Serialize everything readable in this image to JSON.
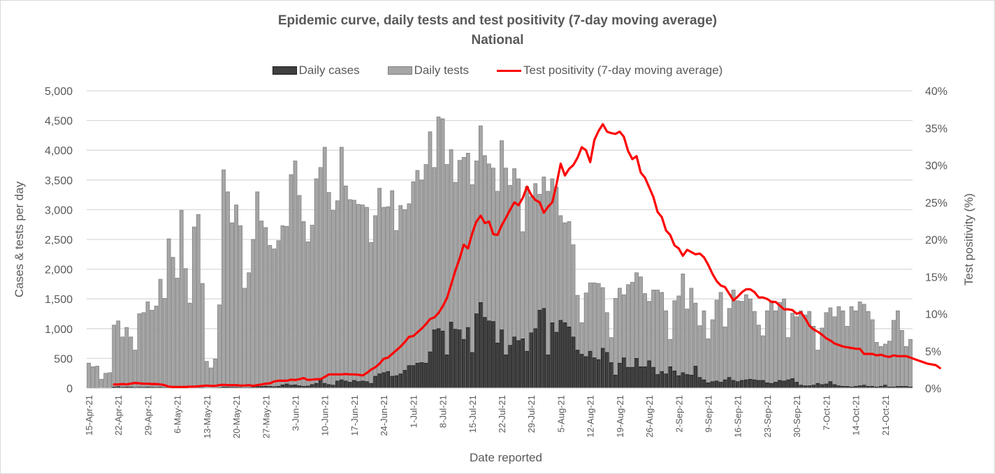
{
  "chart_data": {
    "type": "bar",
    "title": "Epidemic curve, daily tests and test positivity (7-day moving average)",
    "subtitle": "National",
    "xlabel": "Date reported",
    "ylabel": "Cases & tests per day",
    "y2label": "Test positivity (%)",
    "ylim": [
      0,
      5000
    ],
    "y2lim": [
      0,
      40
    ],
    "yticks": [
      "0",
      "500",
      "1,000",
      "1,500",
      "2,000",
      "2,500",
      "3,000",
      "3,500",
      "4,000",
      "4,500",
      "5,000"
    ],
    "y2ticks": [
      "0%",
      "5%",
      "10%",
      "15%",
      "20%",
      "25%",
      "30%",
      "35%",
      "40%"
    ],
    "grid": true,
    "legend_position": "top",
    "legend": [
      "Daily cases",
      "Daily tests",
      "Test positivity (7-day moving average)"
    ],
    "colors": {
      "cases": "#404040",
      "tests": "#a6a6a6",
      "positivity": "#ff0000",
      "bar_border": "#7f7f7f"
    },
    "start_date": "15-Apr-21",
    "xtick_labels": [
      "15-Apr-21",
      "22-Apr-21",
      "29-Apr-21",
      "6-May-21",
      "13-May-21",
      "20-May-21",
      "27-May-21",
      "3-Jun-21",
      "10-Jun-21",
      "17-Jun-21",
      "24-Jun-21",
      "1-Jul-21",
      "8-Jul-21",
      "15-Jul-21",
      "22-Jul-21",
      "29-Jul-21",
      "5-Aug-21",
      "12-Aug-21",
      "19-Aug-21",
      "26-Aug-21",
      "2-Sep-21",
      "9-Sep-21",
      "16-Sep-21",
      "23-Sep-21",
      "30-Sep-21",
      "7-Oct-21",
      "14-Oct-21",
      "21-Oct-21"
    ],
    "xtick_interval_days": 7,
    "series": [
      {
        "name": "Daily tests",
        "type": "bar",
        "axis": "left",
        "values": [
          420,
          360,
          370,
          150,
          250,
          260,
          1060,
          1130,
          860,
          1020,
          860,
          640,
          1250,
          1270,
          1450,
          1310,
          1380,
          1830,
          1510,
          2510,
          2200,
          1850,
          2990,
          2010,
          1430,
          2710,
          2920,
          1760,
          450,
          340,
          490,
          1400,
          3670,
          3300,
          2780,
          3080,
          2730,
          1680,
          1940,
          2500,
          3300,
          2810,
          2700,
          2400,
          2340,
          2480,
          2730,
          2720,
          3590,
          3820,
          3240,
          2800,
          2460,
          2740,
          3520,
          3710,
          4050,
          3290,
          2990,
          3150,
          4050,
          3400,
          3170,
          3160,
          3090,
          3080,
          3040,
          2450,
          2900,
          3360,
          3040,
          3050,
          3320,
          2650,
          3070,
          3000,
          3100,
          3470,
          3660,
          3500,
          3760,
          4310,
          3710,
          4560,
          4530,
          3760,
          4010,
          3460,
          3830,
          3880,
          3950,
          3420,
          3820,
          4410,
          3910,
          3770,
          3700,
          3310,
          4160,
          3700,
          3410,
          3690,
          3520,
          2630,
          3390,
          3220,
          3440,
          3260,
          3550,
          3310,
          3520,
          3380,
          2900,
          2780,
          2800,
          2410,
          1560,
          1100,
          1600,
          1770,
          1770,
          1760,
          1690,
          1270,
          850,
          1510,
          1680,
          1570,
          1740,
          1780,
          1940,
          1870,
          1590,
          1460,
          1650,
          1650,
          1610,
          1300,
          820,
          1470,
          1550,
          1920,
          1330,
          1680,
          1430,
          1050,
          1300,
          830,
          1150,
          1480,
          1610,
          1030,
          1340,
          1650,
          1470,
          1460,
          1570,
          1500,
          1290,
          1060,
          880,
          1300,
          1470,
          1300,
          1440,
          1500,
          850,
          1260,
          1200,
          1300,
          1230,
          1290,
          1040,
          640,
          1010,
          1270,
          1350,
          1200,
          1370,
          1300,
          1040,
          1370,
          1300,
          1450,
          1410,
          1290,
          1150,
          770,
          700,
          740,
          790,
          1140,
          1300,
          970,
          700,
          820
        ]
      },
      {
        "name": "Daily cases",
        "type": "bar",
        "axis": "left",
        "values": [
          5,
          5,
          5,
          3,
          4,
          4,
          20,
          25,
          15,
          20,
          18,
          12,
          15,
          14,
          18,
          15,
          12,
          15,
          10,
          12,
          10,
          8,
          15,
          10,
          6,
          12,
          15,
          8,
          3,
          2,
          4,
          8,
          20,
          18,
          15,
          15,
          12,
          8,
          10,
          15,
          40,
          30,
          35,
          30,
          25,
          30,
          55,
          70,
          50,
          55,
          40,
          30,
          35,
          60,
          80,
          140,
          80,
          60,
          50,
          120,
          140,
          120,
          100,
          130,
          110,
          120,
          110,
          80,
          200,
          240,
          260,
          280,
          200,
          210,
          240,
          300,
          380,
          380,
          420,
          430,
          420,
          610,
          980,
          1000,
          960,
          560,
          1110,
          990,
          980,
          820,
          1020,
          600,
          1250,
          1440,
          1190,
          1130,
          1120,
          760,
          980,
          560,
          720,
          860,
          800,
          830,
          620,
          930,
          1000,
          1310,
          1340,
          560,
          1100,
          940,
          1140,
          1100,
          1030,
          860,
          640,
          570,
          530,
          620,
          510,
          480,
          670,
          600,
          430,
          220,
          420,
          510,
          350,
          350,
          500,
          360,
          360,
          460,
          350,
          230,
          280,
          240,
          360,
          290,
          210,
          260,
          230,
          220,
          370,
          180,
          140,
          90,
          110,
          120,
          100,
          140,
          180,
          130,
          110,
          130,
          140,
          150,
          140,
          130,
          130,
          90,
          80,
          100,
          130,
          120,
          140,
          160,
          100,
          50,
          40,
          40,
          50,
          80,
          60,
          70,
          110,
          60,
          40,
          30,
          30,
          20,
          30,
          40,
          50,
          30,
          30,
          20,
          30,
          50,
          20,
          20,
          30,
          30,
          30,
          20,
          10
        ]
      },
      {
        "name": "Test positivity (7-day moving average)",
        "type": "line",
        "axis": "right",
        "start_index": 6,
        "values": [
          0.5,
          0.5,
          0.55,
          0.5,
          0.6,
          0.7,
          0.65,
          0.6,
          0.6,
          0.55,
          0.55,
          0.5,
          0.4,
          0.2,
          0.15,
          0.15,
          0.15,
          0.15,
          0.2,
          0.2,
          0.25,
          0.3,
          0.35,
          0.3,
          0.3,
          0.4,
          0.45,
          0.4,
          0.4,
          0.4,
          0.35,
          0.35,
          0.4,
          0.3,
          0.4,
          0.5,
          0.6,
          0.65,
          0.9,
          1.0,
          1.0,
          1.0,
          1.15,
          1.1,
          1.2,
          1.35,
          1.1,
          1.15,
          1.2,
          1.2,
          1.5,
          1.85,
          1.85,
          1.85,
          1.85,
          1.9,
          1.85,
          1.85,
          1.8,
          1.7,
          2.05,
          2.5,
          2.8,
          3.3,
          3.95,
          4.1,
          4.6,
          5.1,
          5.6,
          6.2,
          6.9,
          7.0,
          7.5,
          8.0,
          8.6,
          9.3,
          9.5,
          10.1,
          11.0,
          12.1,
          13.9,
          15.8,
          17.4,
          19.3,
          18.8,
          20.8,
          22.4,
          23.2,
          22.2,
          22.4,
          20.7,
          20.6,
          21.9,
          22.9,
          24.0,
          25.0,
          24.6,
          25.6,
          27.1,
          26.0,
          25.3,
          25.0,
          23.6,
          24.4,
          25.0,
          27.4,
          30.2,
          28.6,
          29.5,
          30.0,
          31.0,
          32.4,
          32.0,
          30.4,
          33.4,
          34.6,
          35.5,
          34.5,
          34.3,
          34.2,
          34.5,
          33.8,
          31.9,
          30.8,
          31.2,
          29.0,
          28.3,
          27.0,
          25.7,
          23.7,
          23.0,
          21.2,
          20.6,
          19.2,
          18.8,
          17.8,
          18.6,
          18.3,
          18.0,
          18.1,
          17.6,
          16.6,
          15.4,
          14.4,
          13.8,
          13.6,
          12.7,
          11.8,
          12.3,
          12.9,
          13.3,
          13.3,
          12.9,
          12.2,
          12.2,
          12.0,
          11.6,
          11.6,
          11.1,
          10.6,
          10.6,
          10.5,
          10.0,
          10.2,
          9.4,
          8.4,
          7.9,
          7.6,
          7.2,
          6.7,
          6.4,
          6.0,
          5.8,
          5.6,
          5.5,
          5.4,
          5.3,
          5.3,
          4.6,
          4.6,
          4.6,
          4.4,
          4.5,
          4.3,
          4.2,
          4.4,
          4.3,
          4.3,
          4.3,
          4.1,
          3.9,
          3.7,
          3.5,
          3.3,
          3.2,
          3.1,
          2.7
        ]
      }
    ]
  }
}
